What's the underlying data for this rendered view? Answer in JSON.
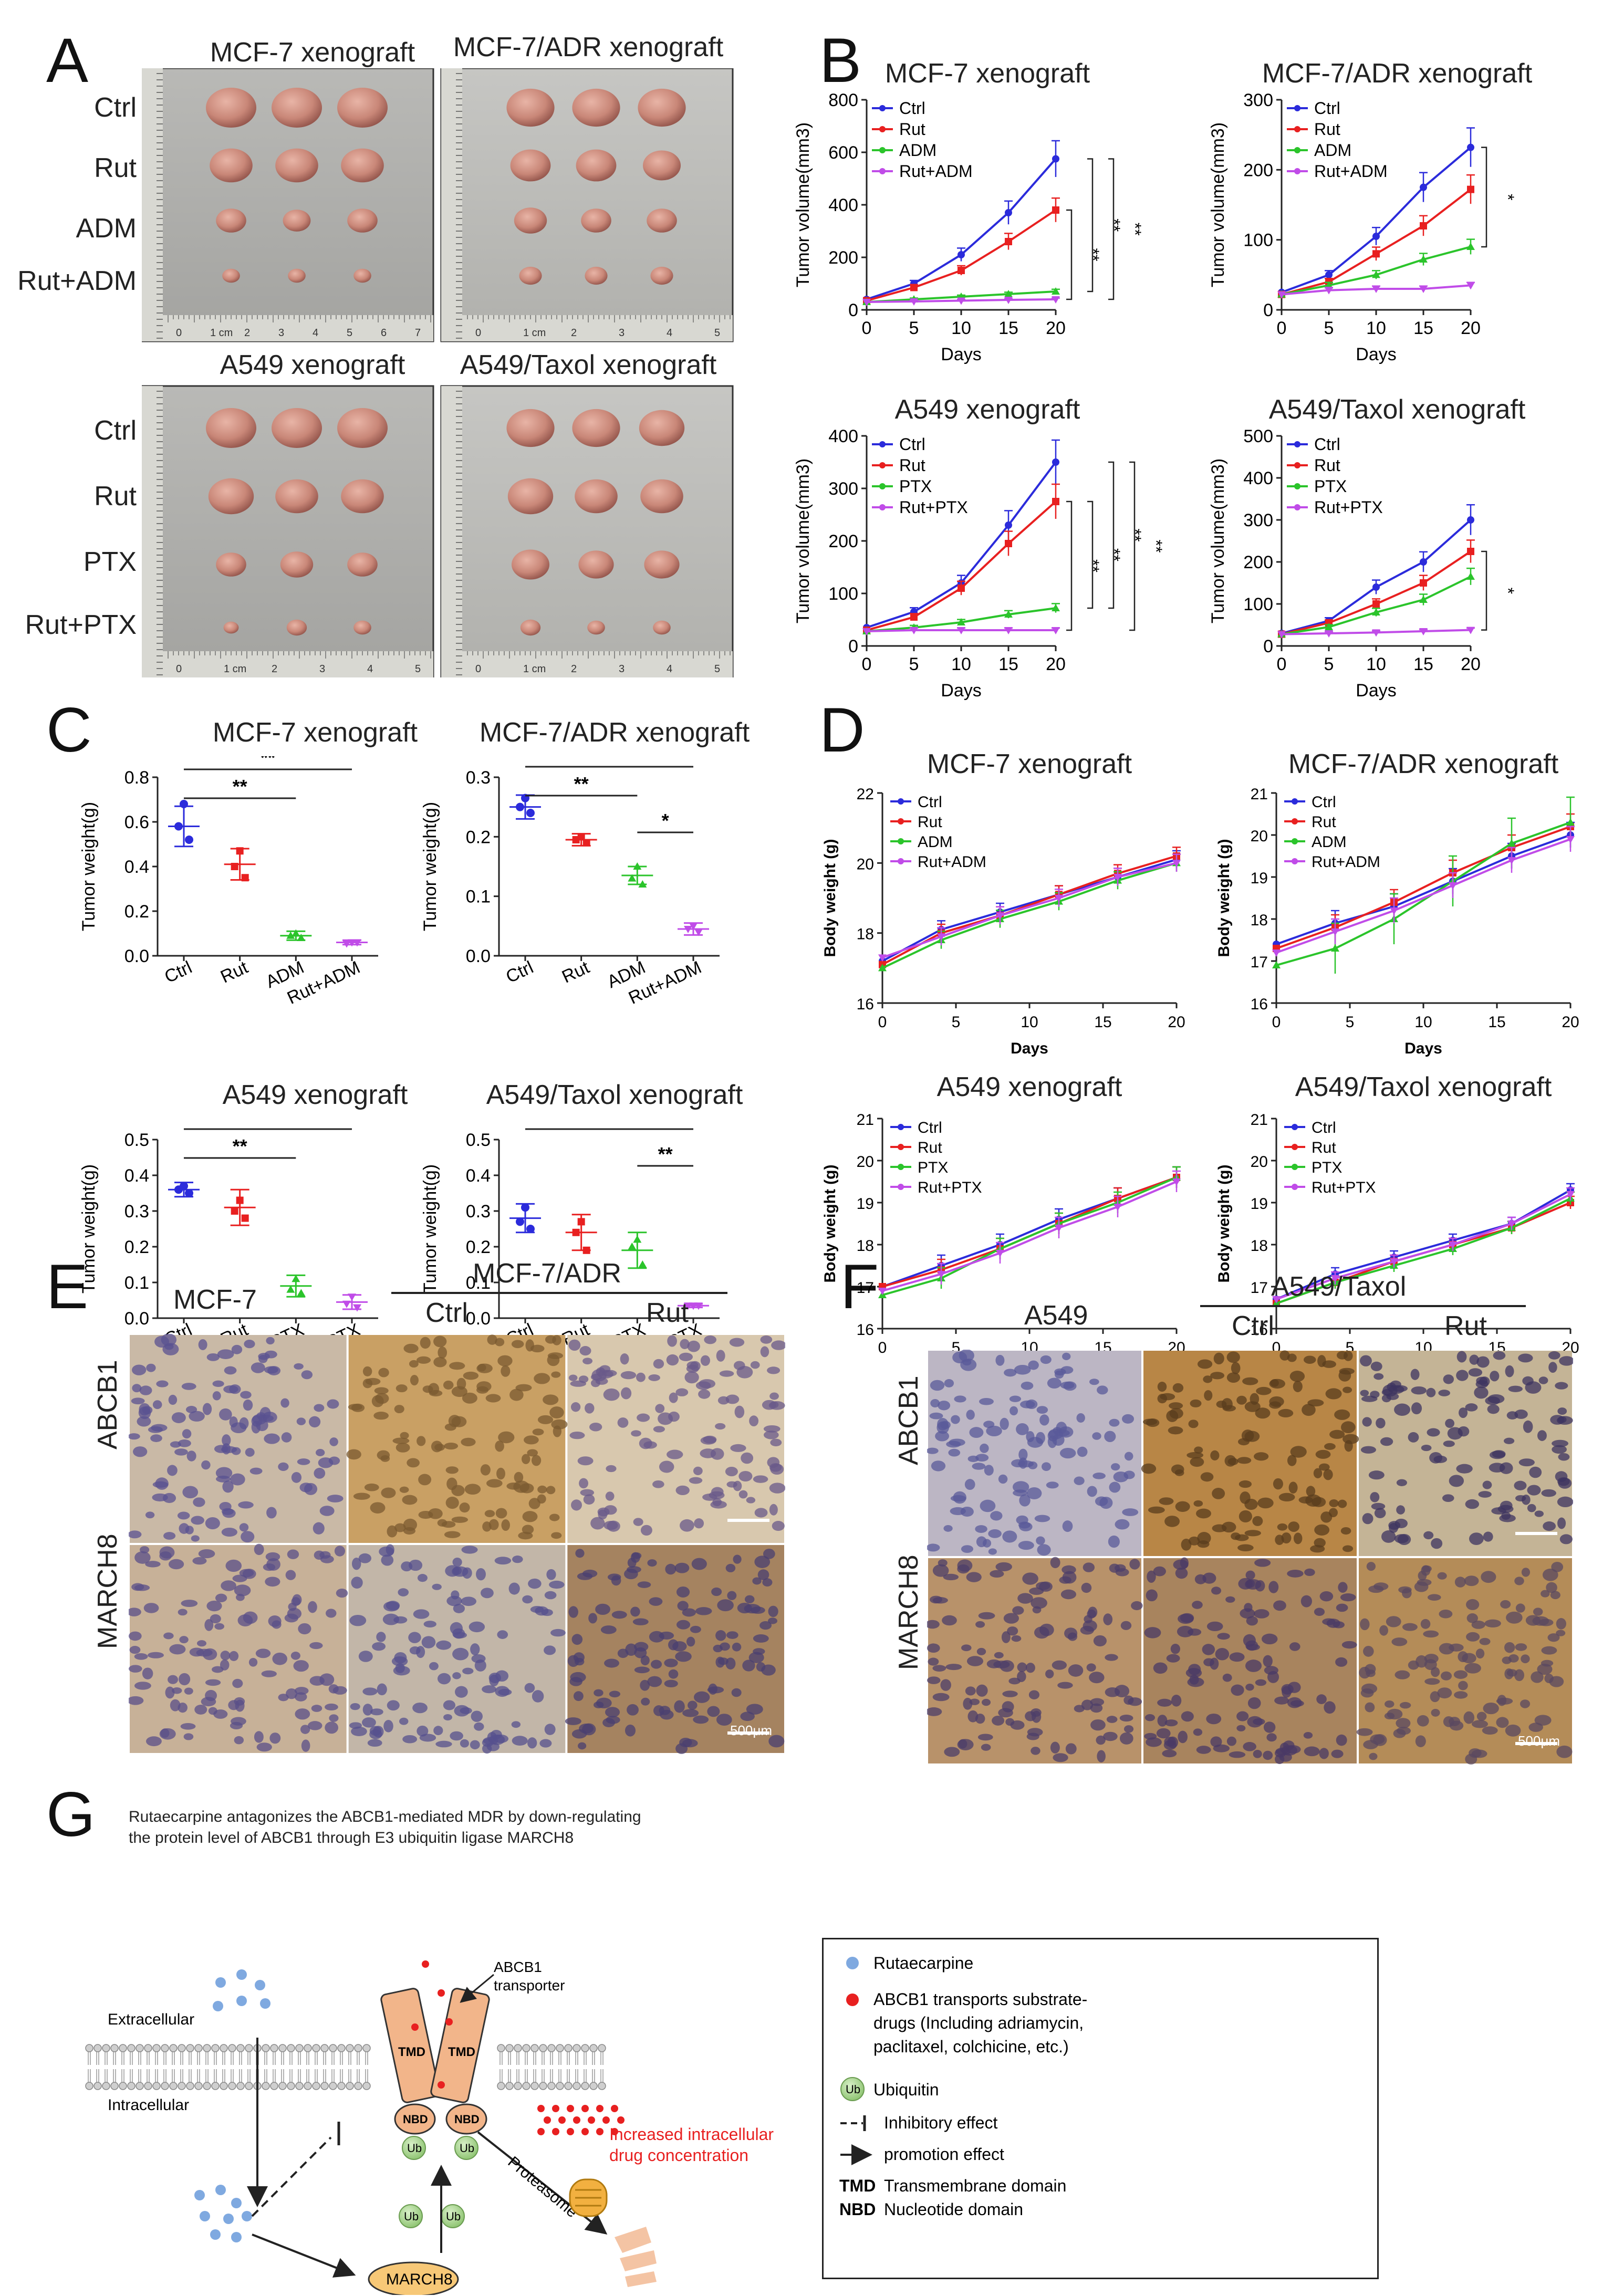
{
  "panels": {
    "A": "A",
    "B": "B",
    "C": "C",
    "D": "D",
    "E": "E",
    "F": "F",
    "G": "G"
  },
  "panelA": {
    "titles": [
      "MCF-7 xenograft",
      "MCF-7/ADR xenograft",
      "A549 xenograft",
      "A549/Taxol xenograft"
    ],
    "rows_top": [
      "Ctrl",
      "Rut",
      "ADM",
      "Rut+ADM"
    ],
    "rows_bottom": [
      "Ctrl",
      "Rut",
      "PTX",
      "Rut+PTX"
    ],
    "ruler_top_left": [
      "0",
      "1 cm",
      "2",
      "3",
      "4",
      "5",
      "6",
      "7"
    ],
    "ruler_bottom_left": [
      "0",
      "1 cm",
      "2",
      "3",
      "4",
      "5"
    ],
    "ruler_top_right": [
      "0",
      "1 cm",
      "2",
      "3",
      "4",
      "5"
    ],
    "ruler_bottom_right": [
      "0",
      "1 cm",
      "2",
      "3",
      "4",
      "5"
    ]
  },
  "chart_data": [
    {
      "id": "B1",
      "type": "line",
      "title": "MCF-7 xenograft",
      "xlabel": "Days",
      "ylabel": "Tumor volume(mm3)",
      "ylim": [
        0,
        800
      ],
      "yticks": [
        0,
        200,
        400,
        600,
        800
      ],
      "x": [
        0,
        5,
        10,
        15,
        20
      ],
      "series": [
        {
          "name": "Ctrl",
          "values": [
            40,
            100,
            210,
            370,
            575
          ]
        },
        {
          "name": "Rut",
          "values": [
            35,
            85,
            150,
            260,
            380
          ]
        },
        {
          "name": "ADM",
          "values": [
            30,
            40,
            50,
            60,
            70
          ]
        },
        {
          "name": "Rut+ADM",
          "values": [
            30,
            32,
            35,
            38,
            40
          ]
        }
      ],
      "sig": [
        "**",
        "**",
        "**"
      ]
    },
    {
      "id": "B2",
      "type": "line",
      "title": "MCF-7/ADR xenograft",
      "xlabel": "Days",
      "ylabel": "Tumor volume(mm3)",
      "ylim": [
        0,
        300
      ],
      "yticks": [
        0,
        100,
        200,
        300
      ],
      "x": [
        0,
        5,
        10,
        15,
        20
      ],
      "series": [
        {
          "name": "Ctrl",
          "values": [
            25,
            50,
            105,
            175,
            232
          ]
        },
        {
          "name": "Rut",
          "values": [
            22,
            40,
            80,
            120,
            172
          ]
        },
        {
          "name": "ADM",
          "values": [
            22,
            35,
            50,
            72,
            90
          ]
        },
        {
          "name": "Rut+ADM",
          "values": [
            22,
            28,
            30,
            30,
            35
          ]
        }
      ],
      "sig": [
        "*"
      ]
    },
    {
      "id": "B3",
      "type": "line",
      "title": "A549 xenograft",
      "xlabel": "Days",
      "ylabel": "Tumor volume(mm3)",
      "ylim": [
        0,
        400
      ],
      "yticks": [
        0,
        100,
        200,
        300,
        400
      ],
      "x": [
        0,
        5,
        10,
        15,
        20
      ],
      "series": [
        {
          "name": "Ctrl",
          "values": [
            35,
            65,
            120,
            230,
            350
          ]
        },
        {
          "name": "Rut",
          "values": [
            30,
            55,
            110,
            195,
            275
          ]
        },
        {
          "name": "PTX",
          "values": [
            28,
            35,
            45,
            60,
            72
          ]
        },
        {
          "name": "Rut+PTX",
          "values": [
            28,
            30,
            30,
            30,
            30
          ]
        }
      ],
      "sig": [
        "**",
        "**",
        "**",
        "**"
      ]
    },
    {
      "id": "B4",
      "type": "line",
      "title": "A549/Taxol xenograft",
      "xlabel": "Days",
      "ylabel": "Tumor volume(mm3)",
      "ylim": [
        0,
        500
      ],
      "yticks": [
        0,
        100,
        200,
        300,
        400,
        500
      ],
      "x": [
        0,
        5,
        10,
        15,
        20
      ],
      "series": [
        {
          "name": "Ctrl",
          "values": [
            30,
            60,
            140,
            200,
            300
          ]
        },
        {
          "name": "Rut",
          "values": [
            28,
            55,
            100,
            150,
            225
          ]
        },
        {
          "name": "PTX",
          "values": [
            28,
            45,
            80,
            110,
            165
          ]
        },
        {
          "name": "Rut+PTX",
          "values": [
            28,
            30,
            32,
            35,
            38
          ]
        }
      ],
      "sig": [
        "*"
      ]
    },
    {
      "id": "C1",
      "type": "scatter",
      "title": "MCF-7 xenograft",
      "ylabel": "Tumor weight(g)",
      "ylim": [
        0,
        0.8
      ],
      "yticks": [
        "0.0",
        "0.2",
        "0.4",
        "0.6",
        "0.8"
      ],
      "categories": [
        "Ctrl",
        "Rut",
        "ADM",
        "Rut+ADM"
      ],
      "means": [
        0.58,
        0.41,
        0.09,
        0.06
      ],
      "sd": [
        0.09,
        0.07,
        0.02,
        0.01
      ],
      "points": [
        [
          0.68,
          0.58,
          0.52
        ],
        [
          0.47,
          0.4,
          0.35
        ],
        [
          0.1,
          0.09,
          0.08
        ],
        [
          0.06,
          0.055,
          0.06
        ]
      ],
      "sig": [
        "**",
        "**"
      ]
    },
    {
      "id": "C2",
      "type": "scatter",
      "title": "MCF-7/ADR xenograft",
      "ylabel": "Tumor weight(g)",
      "ylim": [
        0,
        0.3
      ],
      "yticks": [
        "0.0",
        "0.1",
        "0.2",
        "0.3"
      ],
      "categories": [
        "Ctrl",
        "Rut",
        "ADM",
        "Rut+ADM"
      ],
      "means": [
        0.25,
        0.195,
        0.135,
        0.045
      ],
      "sd": [
        0.02,
        0.01,
        0.015,
        0.01
      ],
      "points": [
        [
          0.265,
          0.25,
          0.24
        ],
        [
          0.2,
          0.195,
          0.19
        ],
        [
          0.15,
          0.13,
          0.12
        ],
        [
          0.05,
          0.045,
          0.04
        ]
      ],
      "sig": [
        "**",
        "**",
        "*"
      ]
    },
    {
      "id": "C3",
      "type": "scatter",
      "title": "A549 xenograft",
      "ylabel": "Tumor weight(g)",
      "ylim": [
        0,
        0.5
      ],
      "yticks": [
        "0.0",
        "0.1",
        "0.2",
        "0.3",
        "0.4",
        "0.5"
      ],
      "categories": [
        "Ctrl",
        "Rut",
        "PTX",
        "Rut+PTX"
      ],
      "means": [
        0.36,
        0.31,
        0.09,
        0.045
      ],
      "sd": [
        0.02,
        0.05,
        0.03,
        0.02
      ],
      "points": [
        [
          0.37,
          0.36,
          0.35
        ],
        [
          0.33,
          0.3,
          0.28
        ],
        [
          0.11,
          0.08,
          0.07
        ],
        [
          0.06,
          0.04,
          0.03
        ]
      ],
      "sig": [
        "**",
        "**"
      ]
    },
    {
      "id": "C4",
      "type": "scatter",
      "title": "A549/Taxol xenograft",
      "ylabel": "Tumor weight(g)",
      "ylim": [
        0,
        0.5
      ],
      "yticks": [
        "0.0",
        "0.1",
        "0.2",
        "0.3",
        "0.4",
        "0.5"
      ],
      "categories": [
        "Ctrl",
        "Rut",
        "PTX",
        "Rut+PTX"
      ],
      "means": [
        0.28,
        0.24,
        0.19,
        0.035
      ],
      "sd": [
        0.04,
        0.05,
        0.05,
        0.005
      ],
      "points": [
        [
          0.31,
          0.27,
          0.25
        ],
        [
          0.27,
          0.24,
          0.19
        ],
        [
          0.22,
          0.2,
          0.15
        ],
        [
          0.035,
          0.035,
          0.035
        ]
      ],
      "sig": [
        "**",
        "**"
      ]
    },
    {
      "id": "D1",
      "type": "line",
      "title": "MCF-7 xenograft",
      "xlabel": "Days",
      "ylabel": "Body weight (g)",
      "ylim": [
        16,
        22
      ],
      "yticks": [
        16,
        18,
        20,
        22
      ],
      "xticks": [
        0,
        5,
        10,
        15,
        20
      ],
      "x": [
        0,
        4,
        8,
        12,
        16,
        20
      ],
      "series": [
        {
          "name": "Ctrl",
          "values": [
            17.2,
            18.1,
            18.6,
            19.1,
            19.6,
            20.1
          ]
        },
        {
          "name": "Rut",
          "values": [
            17.1,
            18.0,
            18.5,
            19.1,
            19.7,
            20.2
          ]
        },
        {
          "name": "ADM",
          "values": [
            17.0,
            17.8,
            18.4,
            18.9,
            19.5,
            20.0
          ]
        },
        {
          "name": "Rut+ADM",
          "values": [
            17.3,
            17.9,
            18.5,
            19.0,
            19.6,
            20.0
          ]
        }
      ]
    },
    {
      "id": "D2",
      "type": "line",
      "title": "MCF-7/ADR xenograft",
      "xlabel": "Days",
      "ylabel": "Body weight (g)",
      "ylim": [
        16,
        21
      ],
      "yticks": [
        16,
        17,
        18,
        19,
        20,
        21
      ],
      "xticks": [
        0,
        5,
        10,
        15,
        20
      ],
      "x": [
        0,
        4,
        8,
        12,
        16,
        20
      ],
      "series": [
        {
          "name": "Ctrl",
          "values": [
            17.4,
            17.9,
            18.3,
            18.9,
            19.5,
            20.0
          ]
        },
        {
          "name": "Rut",
          "values": [
            17.3,
            17.8,
            18.4,
            19.1,
            19.7,
            20.2
          ]
        },
        {
          "name": "ADM",
          "values": [
            16.9,
            17.3,
            18.0,
            18.9,
            19.8,
            20.3
          ]
        },
        {
          "name": "Rut+ADM",
          "values": [
            17.2,
            17.7,
            18.2,
            18.8,
            19.4,
            19.9
          ]
        }
      ]
    },
    {
      "id": "D3",
      "type": "line",
      "title": "A549 xenograft",
      "xlabel": "Days",
      "ylabel": "Body weight (g)",
      "ylim": [
        16,
        21
      ],
      "yticks": [
        16,
        17,
        18,
        19,
        20,
        21
      ],
      "xticks": [
        0,
        5,
        10,
        15,
        20
      ],
      "x": [
        0,
        4,
        8,
        12,
        16,
        20
      ],
      "series": [
        {
          "name": "Ctrl",
          "values": [
            17.0,
            17.5,
            18.0,
            18.6,
            19.1,
            19.6
          ]
        },
        {
          "name": "Rut",
          "values": [
            17.0,
            17.4,
            17.9,
            18.5,
            19.1,
            19.6
          ]
        },
        {
          "name": "PTX",
          "values": [
            16.8,
            17.2,
            17.9,
            18.5,
            19.0,
            19.6
          ]
        },
        {
          "name": "Rut+PTX",
          "values": [
            16.9,
            17.3,
            17.8,
            18.4,
            18.9,
            19.5
          ]
        }
      ]
    },
    {
      "id": "D4",
      "type": "line",
      "title": "A549/Taxol xenograft",
      "xlabel": "Days",
      "ylabel": "Body weight (g)",
      "ylim": [
        16,
        21
      ],
      "yticks": [
        16,
        17,
        18,
        19,
        20,
        21
      ],
      "xticks": [
        0,
        5,
        10,
        15,
        20
      ],
      "x": [
        0,
        4,
        8,
        12,
        16,
        20
      ],
      "series": [
        {
          "name": "Ctrl",
          "values": [
            16.7,
            17.3,
            17.7,
            18.1,
            18.5,
            19.3
          ]
        },
        {
          "name": "Rut",
          "values": [
            16.6,
            17.1,
            17.6,
            18.0,
            18.4,
            19.0
          ]
        },
        {
          "name": "PTX",
          "values": [
            16.6,
            17.1,
            17.5,
            17.9,
            18.4,
            19.1
          ]
        },
        {
          "name": "Rut+PTX",
          "values": [
            16.7,
            17.2,
            17.6,
            18.0,
            18.5,
            19.2
          ]
        }
      ]
    }
  ],
  "colors": {
    "Ctrl": "#2b2bdb",
    "Rut": "#e82020",
    "ADM": "#2bc42b",
    "PTX": "#2bc42b",
    "Rut+ADM": "#c04ce8",
    "Rut+PTX": "#c04ce8"
  },
  "panelE": {
    "col0": "MCF-7",
    "group": "MCF-7/ADR",
    "col1": "Ctrl",
    "col2": "Rut",
    "row0": "ABCB1",
    "row1": "MARCH8",
    "scale": "500μm"
  },
  "panelF": {
    "col0": "A549",
    "group": "A549/Taxol",
    "col1": "Ctrl",
    "col2": "Rut",
    "row0": "ABCB1",
    "row1": "MARCH8",
    "scale": "500μm"
  },
  "panelG": {
    "title_line1": "Rutaecarpine antagonizes the ABCB1-mediated MDR by down-regulating",
    "title_line2": "the protein level of ABCB1 through E3 ubiquitin ligase MARCH8",
    "extracellular": "Extracellular",
    "intracellular": "Intracellular",
    "transporter1": "ABCB1",
    "transporter2": "transporter",
    "tmd": "TMD",
    "nbd": "NBD",
    "ub": "Ub",
    "march8": "MARCH8",
    "proteasome": "Proteasome",
    "increased1": "Increased intracellular",
    "increased2": "drug concentration",
    "legend": {
      "rut": "Rutaecarpine",
      "drug1": "ABCB1 transports substrate-",
      "drug2": "drugs (Including adriamycin,",
      "drug3": "paclitaxel, colchicine, etc.)",
      "ubiquitin": "Ubiquitin",
      "inhibit": "Inhibitory effect",
      "promote": "promotion effect",
      "tmd_k": "TMD",
      "tmd_v": "Transmembrane domain",
      "nbd_k": "NBD",
      "nbd_v": "Nucleotide domain"
    }
  }
}
